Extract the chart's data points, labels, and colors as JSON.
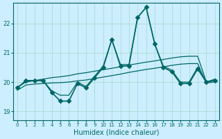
{
  "xlabel": "Humidex (Indice chaleur)",
  "ylabel": "",
  "xlim": [
    -0.5,
    23.5
  ],
  "ylim": [
    18.7,
    22.7
  ],
  "yticks": [
    19,
    20,
    21,
    22
  ],
  "xticks": [
    0,
    1,
    2,
    3,
    4,
    5,
    6,
    7,
    8,
    9,
    10,
    11,
    12,
    13,
    14,
    15,
    16,
    17,
    18,
    19,
    20,
    21,
    22,
    23
  ],
  "bg_color": "#cceeff",
  "grid_color": "#aaddcc",
  "line_color": "#006666",
  "lines": [
    {
      "x": [
        0,
        1,
        2,
        3,
        4,
        5,
        6,
        7,
        8,
        9,
        10,
        11,
        12,
        13,
        14,
        15,
        16,
        17,
        18,
        19,
        20,
        21,
        22,
        23
      ],
      "y": [
        19.8,
        20.05,
        20.05,
        20.05,
        19.65,
        19.35,
        19.35,
        19.95,
        19.8,
        20.15,
        20.5,
        21.45,
        20.55,
        20.55,
        22.2,
        22.55,
        21.3,
        20.5,
        20.35,
        19.95,
        19.95,
        20.45,
        20.0,
        20.05
      ],
      "marker": "D",
      "markersize": 3,
      "linewidth": 1.2,
      "has_marker": true
    },
    {
      "x": [
        0,
        1,
        2,
        3,
        4,
        5,
        6,
        7,
        8,
        9,
        10,
        11,
        12,
        13,
        14,
        15,
        16,
        17,
        18,
        19,
        20,
        21,
        22,
        23
      ],
      "y": [
        19.8,
        20.05,
        20.05,
        20.05,
        19.7,
        19.55,
        19.55,
        20.0,
        19.85,
        20.2,
        20.55,
        21.45,
        20.6,
        20.6,
        22.2,
        22.55,
        21.3,
        20.55,
        20.4,
        20.0,
        20.0,
        20.5,
        20.0,
        20.1
      ],
      "marker": "",
      "markersize": 0,
      "linewidth": 0.9,
      "has_marker": false
    },
    {
      "x": [
        0,
        1,
        2,
        3,
        4,
        5,
        6,
        7,
        8,
        9,
        10,
        11,
        12,
        13,
        14,
        15,
        16,
        17,
        18,
        19,
        20,
        21,
        22,
        23
      ],
      "y": [
        19.82,
        20.0,
        20.05,
        20.1,
        20.15,
        20.18,
        20.22,
        20.28,
        20.32,
        20.37,
        20.42,
        20.47,
        20.52,
        20.58,
        20.63,
        20.68,
        20.72,
        20.77,
        20.82,
        20.86,
        20.88,
        20.88,
        20.02,
        20.05
      ],
      "marker": "",
      "markersize": 0,
      "linewidth": 0.9,
      "has_marker": false
    },
    {
      "x": [
        0,
        1,
        2,
        3,
        4,
        5,
        6,
        7,
        8,
        9,
        10,
        11,
        12,
        13,
        14,
        15,
        16,
        17,
        18,
        19,
        20,
        21,
        22,
        23
      ],
      "y": [
        19.72,
        19.9,
        19.93,
        19.95,
        19.97,
        19.98,
        20.0,
        20.04,
        20.07,
        20.12,
        20.17,
        20.22,
        20.27,
        20.33,
        20.38,
        20.43,
        20.47,
        20.52,
        20.57,
        20.61,
        20.63,
        20.63,
        19.97,
        20.0
      ],
      "marker": "",
      "markersize": 0,
      "linewidth": 0.9,
      "has_marker": false
    }
  ]
}
